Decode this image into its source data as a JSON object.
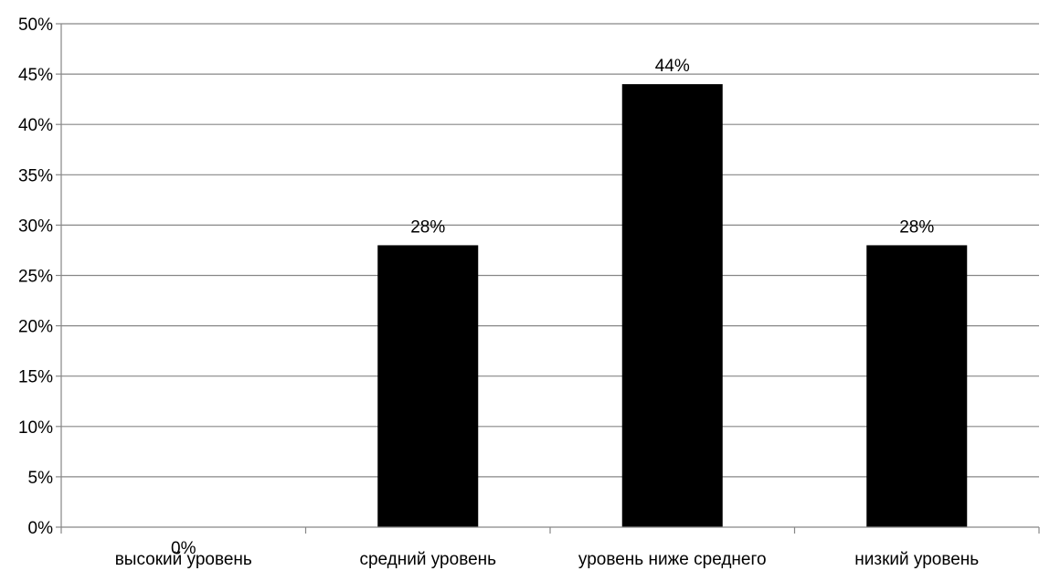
{
  "chart_data": {
    "type": "bar",
    "title": "",
    "xlabel": "",
    "ylabel": "",
    "categories": [
      "высокий уровень",
      "средний уровень",
      "уровень ниже среднего",
      "низкий уровень"
    ],
    "values": [
      0,
      28,
      44,
      28
    ],
    "data_labels": [
      "0%",
      "28%",
      "44%",
      "28%"
    ],
    "ylim": [
      0,
      50
    ],
    "y_ticks": [
      0,
      5,
      10,
      15,
      20,
      25,
      30,
      35,
      40,
      45,
      50
    ],
    "y_tick_labels": [
      "0%",
      "5%",
      "10%",
      "15%",
      "20%",
      "25%",
      "30%",
      "35%",
      "40%",
      "45%",
      "50%"
    ],
    "grid": true,
    "legend": "none",
    "bar_color": "#000000",
    "grid_color": "#878787"
  }
}
